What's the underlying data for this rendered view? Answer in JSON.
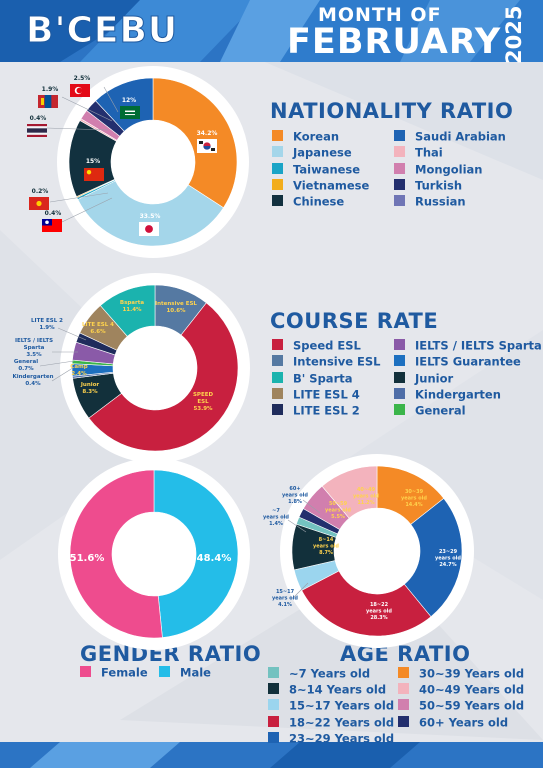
{
  "header": {
    "brand": "B'CEBU",
    "month_line": "MONTH OF",
    "month": "FEBRUARY",
    "year": "2025"
  },
  "colors": {
    "brand_blue": "#1f5aa0",
    "panel_white": "#ffffff"
  },
  "chart_data": [
    {
      "type": "pie",
      "title": "NATIONALITY RATIO",
      "donut": true,
      "slices": [
        {
          "name": "Korean",
          "value": 34.2,
          "label": "34.2%",
          "color": "#f48a26",
          "flag": "korea-flag-icon"
        },
        {
          "name": "Japanese",
          "value": 33.5,
          "label": "33.5%",
          "color": "#a4d6ea",
          "flag": "japan-flag-icon"
        },
        {
          "name": "Taiwanese",
          "value": 0.4,
          "label": "0.4%",
          "color": "#1aa4c6",
          "flag": "taiwan-flag-icon"
        },
        {
          "name": "Vietnamese",
          "value": 0.2,
          "label": "0.2%",
          "color": "#f2ad1c",
          "flag": "vietnam-flag-icon"
        },
        {
          "name": "Chinese",
          "value": 15,
          "label": "15%",
          "color": "#12313f",
          "flag": "china-flag-icon"
        },
        {
          "name": "Thai",
          "value": 0.4,
          "label": "0.4%",
          "color": "#f3b3bd",
          "flag": "thailand-flag-icon"
        },
        {
          "name": "Mongolian",
          "value": 1.9,
          "label": "1.9%",
          "color": "#d17fae",
          "flag": "mongolia-flag-icon"
        },
        {
          "name": "Turkish",
          "value": 2.5,
          "label": "2.5%",
          "color": "#232f6e",
          "flag": "turkey-flag-icon"
        },
        {
          "name": "Russian",
          "value": 0,
          "label": "",
          "color": "#6f75b5",
          "flag": ""
        },
        {
          "name": "Saudi Arabian",
          "value": 12,
          "label": "12%",
          "color": "#1e63b3",
          "flag": "saudi-flag-icon"
        }
      ],
      "legend": [
        "Korean",
        "Japanese",
        "Taiwanese",
        "Vietnamese",
        "Chinese",
        "Saudi Arabian",
        "Thai",
        "Mongolian",
        "Turkish",
        "Russian"
      ]
    },
    {
      "type": "pie",
      "title": "COURSE RATE",
      "donut": true,
      "slices": [
        {
          "name": "Intensive ESL",
          "value": 10.6,
          "lines": [
            "Intensive ESL",
            "10.6%"
          ],
          "color": "#5579a2"
        },
        {
          "name": "Speed ESL",
          "value": 53.9,
          "lines": [
            "SPEED",
            "ESL",
            "53.9%"
          ],
          "color": "#c8203f"
        },
        {
          "name": "Junior",
          "value": 8.3,
          "lines": [
            "Junior",
            "8.3%"
          ],
          "color": "#12303b"
        },
        {
          "name": "Kindergarten",
          "value": 0.4,
          "lines": [
            "Kindergarten",
            "0.4%"
          ],
          "color": "#4f6ea8"
        },
        {
          "name": "Camp",
          "value": 2.4,
          "lines": [
            "Camp",
            "2.4%"
          ],
          "color": "#1d70c0"
        },
        {
          "name": "General",
          "value": 0.7,
          "lines": [
            "General",
            "0.7%"
          ],
          "color": "#3bb54a"
        },
        {
          "name": "IELTS / IELTS Sparta",
          "value": 3.5,
          "lines": [
            "IELTS / IELTS",
            "Sparta",
            "3.5%"
          ],
          "color": "#8a5aa8"
        },
        {
          "name": "LITE ESL 2",
          "value": 1.9,
          "lines": [
            "LITE ESL 2",
            "1.9%"
          ],
          "color": "#1f2c5c"
        },
        {
          "name": "LITE ESL 4",
          "value": 6.6,
          "lines": [
            "LITE ESL 4",
            "6.6%"
          ],
          "color": "#9f845e"
        },
        {
          "name": "Bsparta",
          "value": 11.4,
          "lines": [
            "Bsparta",
            "11.4%"
          ],
          "color": "#1bb3ae"
        }
      ],
      "legend": [
        {
          "label": "Speed ESL",
          "color": "#c8203f"
        },
        {
          "label": "Intensive ESL",
          "color": "#5579a2"
        },
        {
          "label": "B' Sparta",
          "color": "#1bb3ae"
        },
        {
          "label": "LITE ESL 4",
          "color": "#9f845e"
        },
        {
          "label": "LITE ESL 2",
          "color": "#1f2c5c"
        },
        {
          "label": "IELTS / IELTS Sparta",
          "color": "#8a5aa8"
        },
        {
          "label": "IELTS Guarantee",
          "color": "#1d70c0"
        },
        {
          "label": "Junior",
          "color": "#12303b"
        },
        {
          "label": "Kindergarten",
          "color": "#4f6ea8"
        },
        {
          "label": "General",
          "color": "#3bb54a"
        }
      ]
    },
    {
      "type": "pie",
      "title": "GENDER RATIO",
      "donut": true,
      "slices": [
        {
          "name": "Male",
          "value": 48.4,
          "label": "48.4%",
          "color": "#24bde8"
        },
        {
          "name": "Female",
          "value": 51.6,
          "label": "51.6%",
          "color": "#ee4c8e"
        }
      ],
      "legend": [
        "Female",
        "Male"
      ]
    },
    {
      "type": "pie",
      "title": "AGE RATIO",
      "donut": true,
      "slices": [
        {
          "name": "30~39 Years old",
          "value": 14.4,
          "lines": [
            "30~39",
            "years old",
            "14.4%"
          ],
          "color": "#f48a26"
        },
        {
          "name": "23~29 Years old",
          "value": 24.7,
          "lines": [
            "23~29",
            "years old",
            "24.7%"
          ],
          "color": "#1e63b3"
        },
        {
          "name": "18~22 Years old",
          "value": 28.3,
          "lines": [
            "18~22",
            "years old",
            "28.3%"
          ],
          "color": "#c8203f"
        },
        {
          "name": "15~17 Years old",
          "value": 4.1,
          "lines": [
            "15~17",
            "years old",
            "4.1%"
          ],
          "color": "#9bd5ee"
        },
        {
          "name": "8~14 Years old",
          "value": 8.7,
          "lines": [
            "8~14",
            "years old",
            "8.7%"
          ],
          "color": "#12303b"
        },
        {
          "name": "~7 Years old",
          "value": 1.4,
          "lines": [
            "~7",
            "years old",
            "1.4%"
          ],
          "color": "#73c2c0"
        },
        {
          "name": "60+ Years old",
          "value": 1.8,
          "lines": [
            "60+",
            "years old",
            "1.8%"
          ],
          "color": "#232f6e"
        },
        {
          "name": "50~59 Years old",
          "value": 5.5,
          "lines": [
            "50~59",
            "years old",
            "5.5%"
          ],
          "color": "#d17fae"
        },
        {
          "name": "40~49 Years old",
          "value": 11.2,
          "lines": [
            "40~49",
            "years old",
            "11.2%"
          ],
          "color": "#f3b3bd"
        }
      ],
      "legend": [
        {
          "label": "~7 Years old",
          "color": "#73c2c0"
        },
        {
          "label": "8~14 Years old",
          "color": "#12303b"
        },
        {
          "label": "15~17 Years old",
          "color": "#9bd5ee"
        },
        {
          "label": "18~22 Years old",
          "color": "#c8203f"
        },
        {
          "label": "23~29 Years old",
          "color": "#1e63b3"
        },
        {
          "label": "30~39 Years old",
          "color": "#f48a26"
        },
        {
          "label": "40~49 Years old",
          "color": "#f3b3bd"
        },
        {
          "label": "50~59 Years old",
          "color": "#d17fae"
        },
        {
          "label": "60+ Years old",
          "color": "#232f6e"
        }
      ]
    }
  ]
}
